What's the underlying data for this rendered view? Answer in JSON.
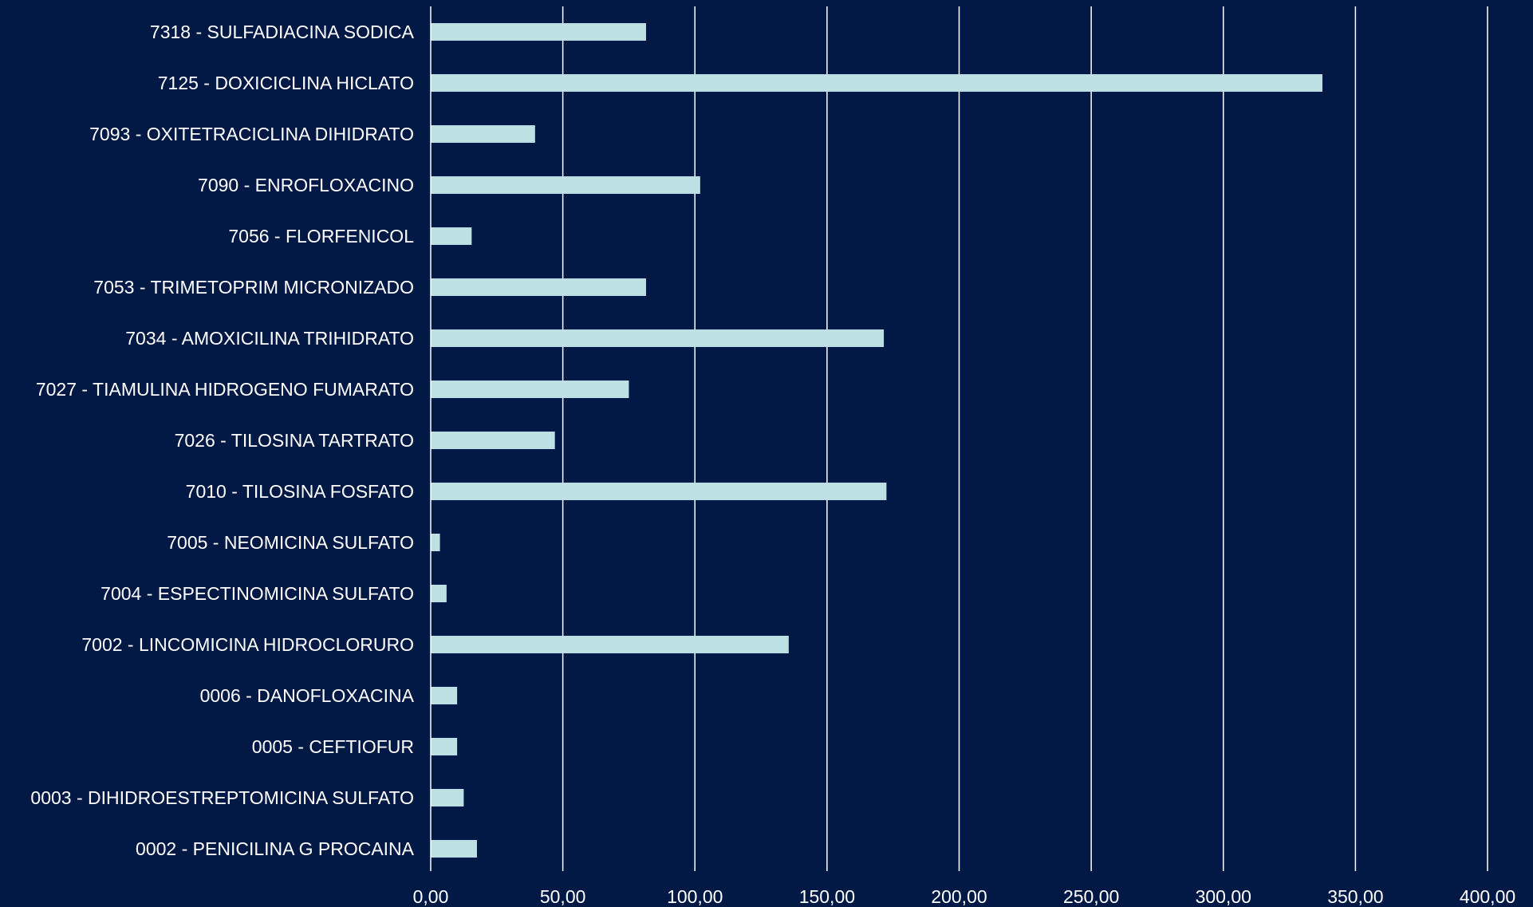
{
  "chart_data": {
    "type": "bar",
    "orientation": "horizontal",
    "categories": [
      "7318 - SULFADIACINA SODICA",
      "7125 - DOXICICLINA HICLATO",
      "7093 - OXITETRACICLINA DIHIDRATO",
      "7090 - ENROFLOXACINO",
      "7056 - FLORFENICOL",
      "7053 - TRIMETOPRIM MICRONIZADO",
      "7034 - AMOXICILINA TRIHIDRATO",
      "7027 - TIAMULINA HIDROGENO FUMARATO",
      "7026 - TILOSINA TARTRATO",
      "7010 - TILOSINA FOSFATO",
      "7005 - NEOMICINA SULFATO",
      "7004 - ESPECTINOMICINA SULFATO",
      "7002 - LINCOMICINA HIDROCLORURO",
      "0006 - DANOFLOXACINA",
      "0005 - CEFTIOFUR",
      "0003 - DIHIDROESTREPTOMICINA SULFATO",
      "0002 - PENICILINA G PROCAINA"
    ],
    "values": [
      81.5,
      337.5,
      39.5,
      102,
      15.5,
      81.5,
      171.5,
      75,
      47,
      172.5,
      3.5,
      6,
      135.5,
      10,
      10,
      12.5,
      17.5
    ],
    "xlim": [
      0,
      400
    ],
    "xticks": [
      "0,00",
      "50,00",
      "100,00",
      "150,00",
      "200,00",
      "250,00",
      "300,00",
      "350,00",
      "400,00"
    ],
    "xtick_values": [
      0,
      50,
      100,
      150,
      200,
      250,
      300,
      350,
      400
    ],
    "grid": true,
    "legend": "none",
    "title": "",
    "xlabel": "",
    "ylabel": ""
  },
  "colors": {
    "background": "#021845",
    "bar": "#bde0e4",
    "text": "#ffffff",
    "grid": "#ffffff"
  }
}
